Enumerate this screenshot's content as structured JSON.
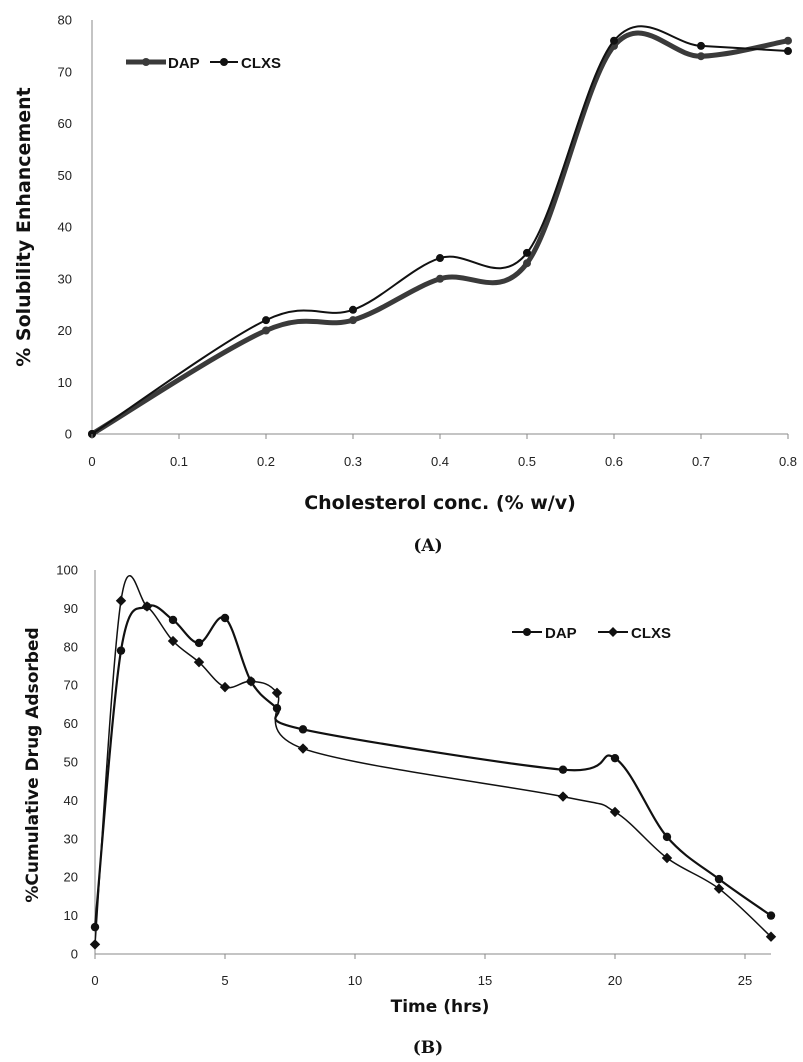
{
  "chart_data": [
    {
      "type": "line",
      "panel_label": "(A)",
      "xlabel": "Cholesterol conc. (% w/v)",
      "ylabel": "% Solubility  Enhancement",
      "xlim": [
        0,
        0.8
      ],
      "ylim": [
        0,
        80
      ],
      "x_ticks": [
        "0",
        "0.1",
        "0.2",
        "0.3",
        "0.4",
        "0.5",
        "0.6",
        "0.7",
        "0.8"
      ],
      "y_ticks": [
        "0",
        "10",
        "20",
        "30",
        "40",
        "50",
        "60",
        "70",
        "80"
      ],
      "legend_position": "top-left",
      "grid": false,
      "series": [
        {
          "name": "DAP",
          "color": "#3a3a3a",
          "marker": "circle",
          "x": [
            0,
            0.2,
            0.3,
            0.4,
            0.5,
            0.6,
            0.7,
            0.8
          ],
          "y": [
            0,
            20,
            22,
            30,
            33,
            75,
            73,
            76
          ]
        },
        {
          "name": "CLXS",
          "color": "#111111",
          "marker": "circle",
          "x": [
            0,
            0.2,
            0.3,
            0.4,
            0.5,
            0.6,
            0.7,
            0.8
          ],
          "y": [
            0,
            22,
            24,
            34,
            35,
            76,
            75,
            74
          ]
        }
      ]
    },
    {
      "type": "line",
      "panel_label": "(B)",
      "xlabel": "Time (hrs)",
      "ylabel": "%Cumulative Drug Adsorbed",
      "xlim": [
        0,
        26
      ],
      "ylim": [
        0,
        100
      ],
      "x_ticks": [
        "0",
        "5",
        "10",
        "15",
        "20",
        "25"
      ],
      "y_ticks": [
        "0",
        "10",
        "20",
        "30",
        "40",
        "50",
        "60",
        "70",
        "80",
        "90",
        "100"
      ],
      "legend_position": "top-right",
      "grid": false,
      "series": [
        {
          "name": "DAP",
          "color": "#111111",
          "marker": "circle",
          "x": [
            0,
            1,
            2,
            3,
            4,
            5,
            6,
            7,
            8,
            18,
            20,
            22,
            24,
            26
          ],
          "y": [
            7,
            79,
            90.5,
            87,
            81,
            87.5,
            71,
            64,
            58.5,
            48,
            51,
            30.5,
            19.5,
            10
          ]
        },
        {
          "name": "CLXS",
          "color": "#111111",
          "marker": "diamond",
          "x": [
            0,
            1,
            2,
            3,
            4,
            5,
            6,
            7,
            8,
            18,
            20,
            22,
            24,
            26
          ],
          "y": [
            2.5,
            92,
            90.5,
            81.5,
            76,
            69.5,
            71,
            68,
            53.5,
            41,
            37,
            25,
            17,
            4.5
          ]
        }
      ]
    }
  ]
}
